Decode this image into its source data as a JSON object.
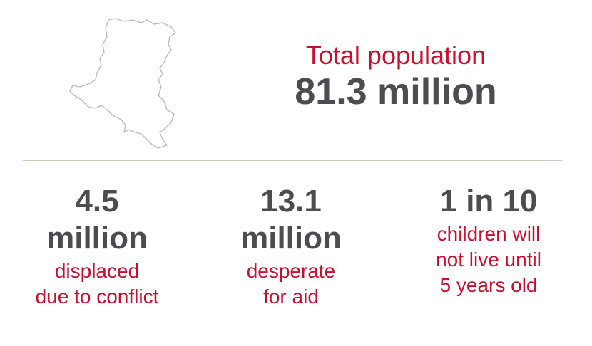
{
  "colors": {
    "accent": "#c8102e",
    "text_dark": "#4d4d4f",
    "rule": "#cfc8bd",
    "map_outline": "#bbbbbb"
  },
  "map": {
    "icon": "country-outline-icon"
  },
  "total": {
    "label": "Total population",
    "value": "81.3 million"
  },
  "stats": [
    {
      "number_lines": [
        "4.5",
        "million"
      ],
      "desc_lines": [
        "displaced",
        "due to conflict"
      ]
    },
    {
      "number_lines": [
        "13.1",
        "million"
      ],
      "desc_lines": [
        "desperate",
        "for aid"
      ]
    },
    {
      "number_lines": [
        "1 in 10"
      ],
      "desc_lines": [
        "children will",
        "not live until",
        "5 years old"
      ]
    }
  ]
}
